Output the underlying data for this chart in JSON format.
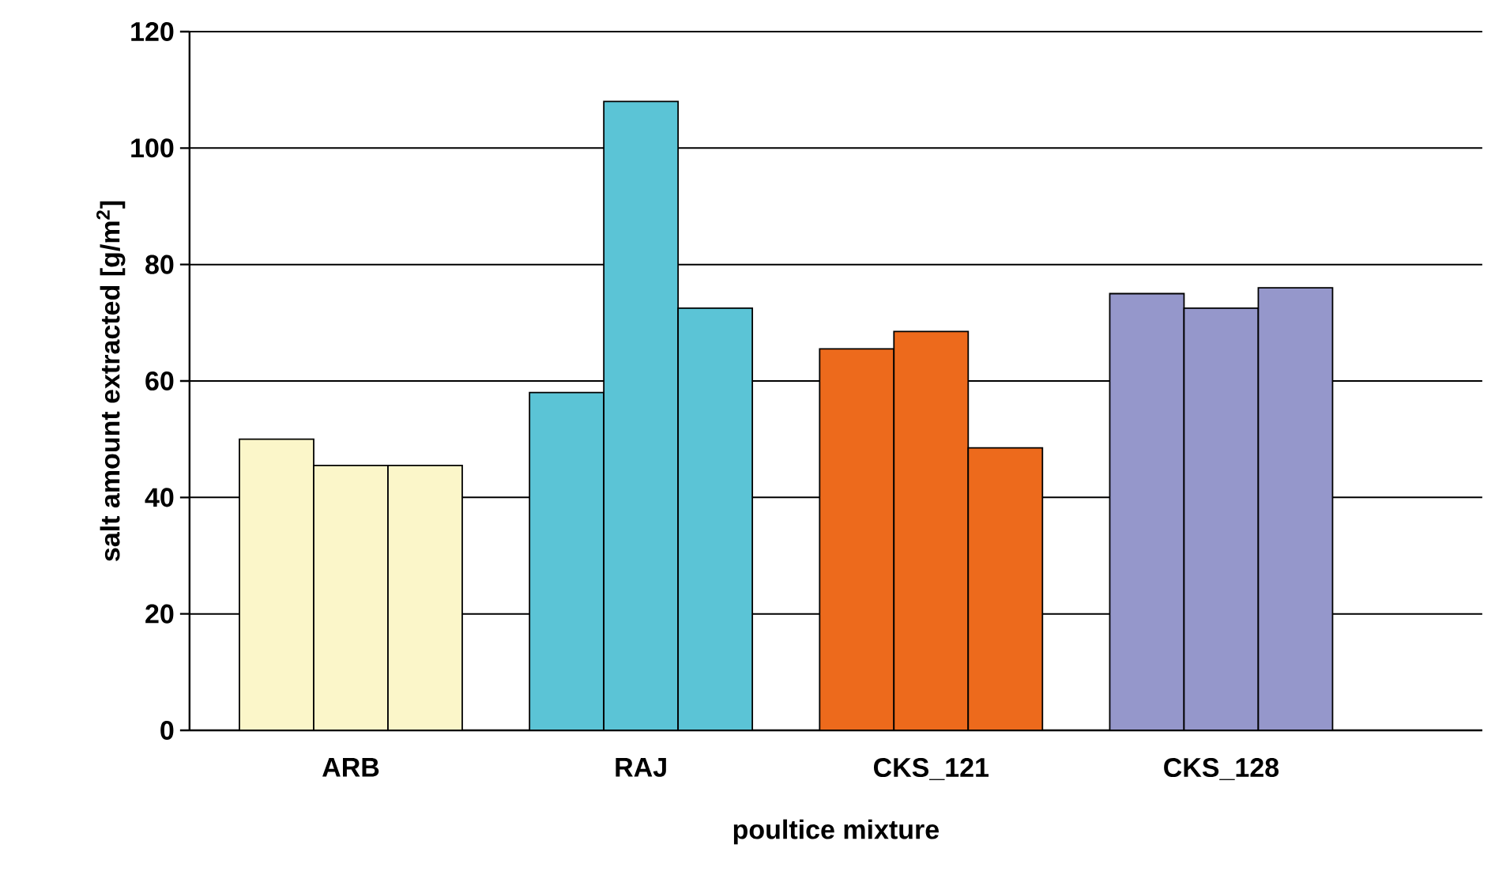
{
  "chart_data": {
    "type": "bar",
    "xlabel": "poultice mixture",
    "ylabel": "salt amount extracted [g/m$^{2}$]",
    "categories": [
      "ARB",
      "RAJ",
      "CKS_121",
      "CKS_128"
    ],
    "series": [
      {
        "colors": [
          "#fbf6c9",
          "#5bc4d6",
          "#ed6a1c",
          "#9597cb"
        ],
        "values": [
          50,
          58,
          65.5,
          75
        ]
      },
      {
        "colors": [
          "#fbf6c9",
          "#5bc4d6",
          "#ed6a1c",
          "#9597cb"
        ],
        "values": [
          45.5,
          108,
          68.5,
          72.5
        ]
      },
      {
        "colors": [
          "#fbf6c9",
          "#5bc4d6",
          "#ed6a1c",
          "#9597cb"
        ],
        "values": [
          45.5,
          72.5,
          48.5,
          76
        ]
      }
    ],
    "ylim": [
      0,
      120
    ],
    "yticks": [
      0,
      20,
      40,
      60,
      80,
      100,
      120
    ],
    "grid": "y"
  }
}
